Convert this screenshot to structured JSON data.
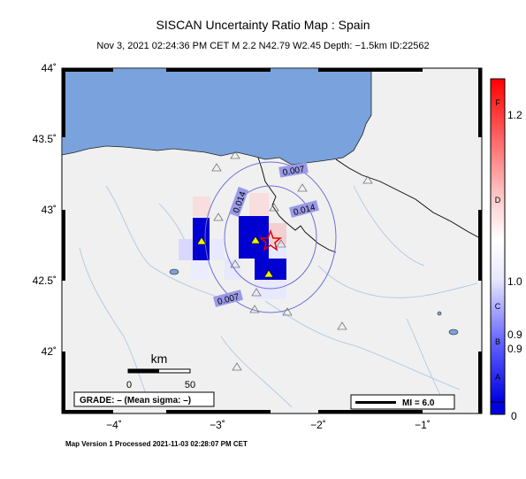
{
  "title": "SISCAN Uncertainty Ratio Map : Spain",
  "subtitle": "Nov  3, 2021 02:24:36 PM CET   M 2.2   N42.79 W2.45   Depth: −1.5km   ID:22562",
  "footer": "Map Version 1 Processed 2021-11-03 02:28:07 PM CET",
  "axes": {
    "lat_ticks": [
      "44˚",
      "43.5˚",
      "43˚",
      "42.5˚",
      "42˚"
    ],
    "lon_ticks": [
      "−4˚",
      "−3˚",
      "−2˚",
      "−1˚"
    ]
  },
  "scalebar": {
    "unit": "km",
    "left_label": "0",
    "right_label": "50"
  },
  "grade_box": {
    "text": "GRADE: – (Mean sigma: –)"
  },
  "mi_box": {
    "text": "MI = 6.0"
  },
  "contours": [
    "0.007",
    "0.014",
    "0.014",
    "0.007"
  ],
  "colorbar": {
    "letters": [
      "F",
      "D",
      "C",
      "B",
      "A"
    ],
    "values": [
      "1.2",
      "1.0",
      "0.9",
      "0.9",
      "0"
    ]
  },
  "epicenter": {
    "lat": 42.79,
    "lon": -2.45
  },
  "colors": {
    "sea": "#7aa2dc",
    "land": "#f0f0f0",
    "cell_dark": "#0000d0",
    "contour": "#6f6fd8",
    "epicenter": "#e00000"
  }
}
